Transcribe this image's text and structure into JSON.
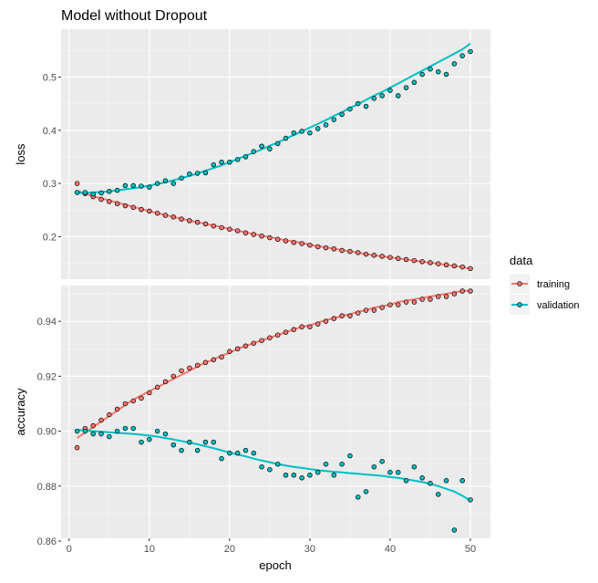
{
  "chart_data": {
    "type": "line",
    "title": "Model without Dropout",
    "xlabel": "epoch",
    "x": [
      1,
      2,
      3,
      4,
      5,
      6,
      7,
      8,
      9,
      10,
      11,
      12,
      13,
      14,
      15,
      16,
      17,
      18,
      19,
      20,
      21,
      22,
      23,
      24,
      25,
      26,
      27,
      28,
      29,
      30,
      31,
      32,
      33,
      34,
      35,
      36,
      37,
      38,
      39,
      40,
      41,
      42,
      43,
      44,
      45,
      46,
      47,
      48,
      49,
      50
    ],
    "xlim": [
      -1,
      52.5
    ],
    "xticks": [
      "0",
      "10",
      "20",
      "30",
      "40",
      "50"
    ],
    "facets": [
      {
        "ylabel": "loss",
        "ylim": [
          0.12,
          0.59
        ],
        "yticks": [
          "0.2",
          "0.3",
          "0.4",
          "0.5"
        ],
        "series": [
          {
            "name": "training",
            "color": "#F8766D",
            "values": [
              0.3,
              0.281,
              0.275,
              0.27,
              0.266,
              0.262,
              0.258,
              0.255,
              0.251,
              0.248,
              0.244,
              0.24,
              0.237,
              0.233,
              0.23,
              0.227,
              0.224,
              0.22,
              0.217,
              0.214,
              0.211,
              0.207,
              0.204,
              0.201,
              0.198,
              0.195,
              0.192,
              0.189,
              0.187,
              0.184,
              0.181,
              0.179,
              0.177,
              0.174,
              0.172,
              0.17,
              0.167,
              0.165,
              0.163,
              0.161,
              0.159,
              0.157,
              0.155,
              0.153,
              0.151,
              0.149,
              0.147,
              0.145,
              0.143,
              0.14
            ]
          },
          {
            "name": "validation",
            "color": "#00BFC4",
            "values": [
              0.283,
              0.283,
              0.28,
              0.282,
              0.285,
              0.287,
              0.296,
              0.296,
              0.295,
              0.293,
              0.3,
              0.305,
              0.3,
              0.31,
              0.318,
              0.319,
              0.32,
              0.335,
              0.34,
              0.34,
              0.345,
              0.35,
              0.36,
              0.37,
              0.365,
              0.375,
              0.385,
              0.395,
              0.398,
              0.395,
              0.403,
              0.41,
              0.42,
              0.43,
              0.44,
              0.45,
              0.445,
              0.46,
              0.465,
              0.475,
              0.465,
              0.48,
              0.49,
              0.505,
              0.515,
              0.51,
              0.505,
              0.525,
              0.54,
              0.548
            ]
          }
        ],
        "smooth": [
          {
            "name": "training",
            "values": [
              0.286,
              0.281,
              0.276,
              0.272,
              0.268,
              0.264,
              0.26,
              0.256,
              0.252,
              0.248,
              0.244,
              0.241,
              0.237,
              0.234,
              0.23,
              0.227,
              0.224,
              0.221,
              0.218,
              0.214,
              0.211,
              0.208,
              0.205,
              0.202,
              0.199,
              0.196,
              0.193,
              0.191,
              0.188,
              0.185,
              0.182,
              0.18,
              0.177,
              0.175,
              0.172,
              0.17,
              0.167,
              0.165,
              0.163,
              0.161,
              0.159,
              0.157,
              0.155,
              0.153,
              0.151,
              0.149,
              0.147,
              0.145,
              0.143,
              0.139
            ]
          },
          {
            "name": "validation",
            "values": [
              0.282,
              0.282,
              0.283,
              0.284,
              0.285,
              0.287,
              0.289,
              0.291,
              0.293,
              0.296,
              0.299,
              0.302,
              0.306,
              0.31,
              0.314,
              0.319,
              0.324,
              0.329,
              0.334,
              0.34,
              0.346,
              0.352,
              0.358,
              0.364,
              0.371,
              0.377,
              0.384,
              0.391,
              0.398,
              0.405,
              0.412,
              0.419,
              0.427,
              0.434,
              0.442,
              0.449,
              0.457,
              0.465,
              0.472,
              0.48,
              0.488,
              0.496,
              0.504,
              0.512,
              0.52,
              0.528,
              0.536,
              0.544,
              0.552,
              0.563
            ]
          }
        ]
      },
      {
        "ylabel": "accuracy",
        "ylim": [
          0.861,
          0.953
        ],
        "yticks": [
          "0.86",
          "0.88",
          "0.90",
          "0.92",
          "0.94"
        ],
        "series": [
          {
            "name": "training",
            "color": "#F8766D",
            "values": [
              0.894,
              0.901,
              0.902,
              0.904,
              0.906,
              0.908,
              0.91,
              0.911,
              0.912,
              0.914,
              0.916,
              0.918,
              0.92,
              0.922,
              0.923,
              0.924,
              0.925,
              0.926,
              0.927,
              0.929,
              0.93,
              0.931,
              0.932,
              0.933,
              0.934,
              0.935,
              0.936,
              0.937,
              0.938,
              0.938,
              0.939,
              0.94,
              0.941,
              0.942,
              0.942,
              0.943,
              0.944,
              0.944,
              0.945,
              0.946,
              0.946,
              0.947,
              0.947,
              0.948,
              0.948,
              0.949,
              0.949,
              0.95,
              0.951,
              0.951
            ]
          },
          {
            "name": "validation",
            "color": "#00BFC4",
            "values": [
              0.9,
              0.9,
              0.899,
              0.899,
              0.898,
              0.9,
              0.901,
              0.901,
              0.896,
              0.897,
              0.9,
              0.899,
              0.895,
              0.893,
              0.896,
              0.893,
              0.896,
              0.896,
              0.89,
              0.892,
              0.892,
              0.893,
              0.892,
              0.887,
              0.886,
              0.888,
              0.884,
              0.884,
              0.883,
              0.884,
              0.885,
              0.888,
              0.884,
              0.888,
              0.891,
              0.876,
              0.878,
              0.887,
              0.889,
              0.885,
              0.885,
              0.882,
              0.887,
              0.883,
              0.881,
              0.877,
              0.882,
              0.864,
              0.882,
              0.875
            ]
          }
        ],
        "smooth": [
          {
            "name": "training",
            "values": [
              0.8975,
              0.8995,
              0.9015,
              0.9035,
              0.9055,
              0.9075,
              0.9095,
              0.9115,
              0.913,
              0.9145,
              0.916,
              0.9175,
              0.919,
              0.9205,
              0.922,
              0.9235,
              0.925,
              0.926,
              0.9275,
              0.9285,
              0.93,
              0.931,
              0.932,
              0.933,
              0.934,
              0.935,
              0.936,
              0.937,
              0.938,
              0.9385,
              0.9395,
              0.9405,
              0.941,
              0.942,
              0.9425,
              0.9435,
              0.944,
              0.945,
              0.9455,
              0.946,
              0.947,
              0.9475,
              0.948,
              0.9485,
              0.949,
              0.9495,
              0.95,
              0.9505,
              0.951,
              0.9512
            ]
          },
          {
            "name": "validation",
            "values": [
              0.9005,
              0.9002,
              0.9,
              0.8998,
              0.8996,
              0.8994,
              0.8992,
              0.899,
              0.8987,
              0.8984,
              0.898,
              0.8975,
              0.897,
              0.8964,
              0.8958,
              0.8952,
              0.8945,
              0.8938,
              0.893,
              0.8922,
              0.8915,
              0.8908,
              0.89,
              0.8893,
              0.8887,
              0.888,
              0.8875,
              0.887,
              0.8866,
              0.8862,
              0.8858,
              0.8855,
              0.8852,
              0.885,
              0.8847,
              0.8845,
              0.8842,
              0.884,
              0.8837,
              0.8833,
              0.883,
              0.8825,
              0.882,
              0.8815,
              0.8808,
              0.88,
              0.879,
              0.878,
              0.8765,
              0.8748
            ]
          }
        ]
      }
    ],
    "legend": {
      "title": "data",
      "placement": "right",
      "entries": [
        {
          "label": "training",
          "color": "#F8766D"
        },
        {
          "label": "validation",
          "color": "#00BFC4"
        }
      ]
    },
    "grid": true
  }
}
